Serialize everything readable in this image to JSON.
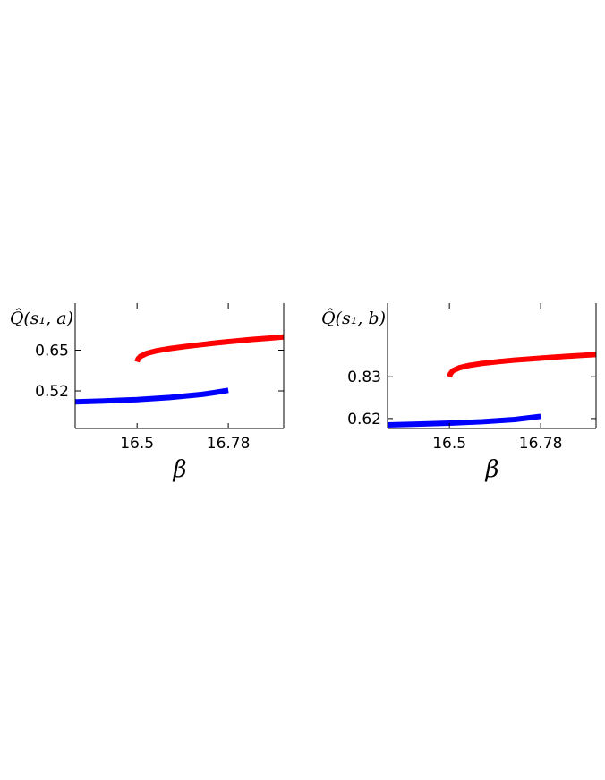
{
  "chart_data": [
    {
      "type": "line",
      "ylabel": "Q̂(s₁, a)",
      "xlabel": "β",
      "xticks": [
        16.5,
        16.78
      ],
      "xtick_labels": [
        "16.5",
        "16.78"
      ],
      "yticks": [
        0.52,
        0.65
      ],
      "ytick_labels": [
        "0.52",
        "0.65"
      ],
      "xlim": [
        16.31,
        16.95
      ],
      "ylim": [
        0.4,
        0.8
      ],
      "grid": false,
      "series": [
        {
          "color": "#ff0000",
          "points": [
            [
              16.5,
              0.613
            ],
            [
              16.503,
              0.622
            ],
            [
              16.51,
              0.63
            ],
            [
              16.53,
              0.64
            ],
            [
              16.56,
              0.648
            ],
            [
              16.6,
              0.655
            ],
            [
              16.65,
              0.662
            ],
            [
              16.7,
              0.668
            ],
            [
              16.75,
              0.674
            ],
            [
              16.8,
              0.679
            ],
            [
              16.85,
              0.684
            ],
            [
              16.9,
              0.688
            ],
            [
              16.95,
              0.692
            ]
          ]
        },
        {
          "color": "#0000ff",
          "points": [
            [
              16.31,
              0.485
            ],
            [
              16.4,
              0.488
            ],
            [
              16.5,
              0.492
            ],
            [
              16.6,
              0.499
            ],
            [
              16.7,
              0.509
            ],
            [
              16.74,
              0.515
            ],
            [
              16.78,
              0.522
            ]
          ]
        }
      ]
    },
    {
      "type": "line",
      "ylabel": "Q̂(s₁, b)",
      "xlabel": "β",
      "xticks": [
        16.5,
        16.78
      ],
      "xtick_labels": [
        "16.5",
        "16.78"
      ],
      "yticks": [
        0.62,
        0.83
      ],
      "ytick_labels": [
        "0.62",
        "0.83"
      ],
      "xlim": [
        16.31,
        16.95
      ],
      "ylim": [
        0.57,
        1.2
      ],
      "grid": false,
      "series": [
        {
          "color": "#ff0000",
          "points": [
            [
              16.5,
              0.83
            ],
            [
              16.503,
              0.845
            ],
            [
              16.51,
              0.86
            ],
            [
              16.53,
              0.875
            ],
            [
              16.56,
              0.887
            ],
            [
              16.6,
              0.897
            ],
            [
              16.65,
              0.906
            ],
            [
              16.7,
              0.914
            ],
            [
              16.75,
              0.92
            ],
            [
              16.8,
              0.926
            ],
            [
              16.85,
              0.932
            ],
            [
              16.9,
              0.937
            ],
            [
              16.95,
              0.942
            ]
          ]
        },
        {
          "color": "#0000ff",
          "points": [
            [
              16.31,
              0.588
            ],
            [
              16.4,
              0.592
            ],
            [
              16.5,
              0.597
            ],
            [
              16.6,
              0.604
            ],
            [
              16.7,
              0.615
            ],
            [
              16.74,
              0.623
            ],
            [
              16.78,
              0.631
            ]
          ]
        }
      ]
    }
  ]
}
